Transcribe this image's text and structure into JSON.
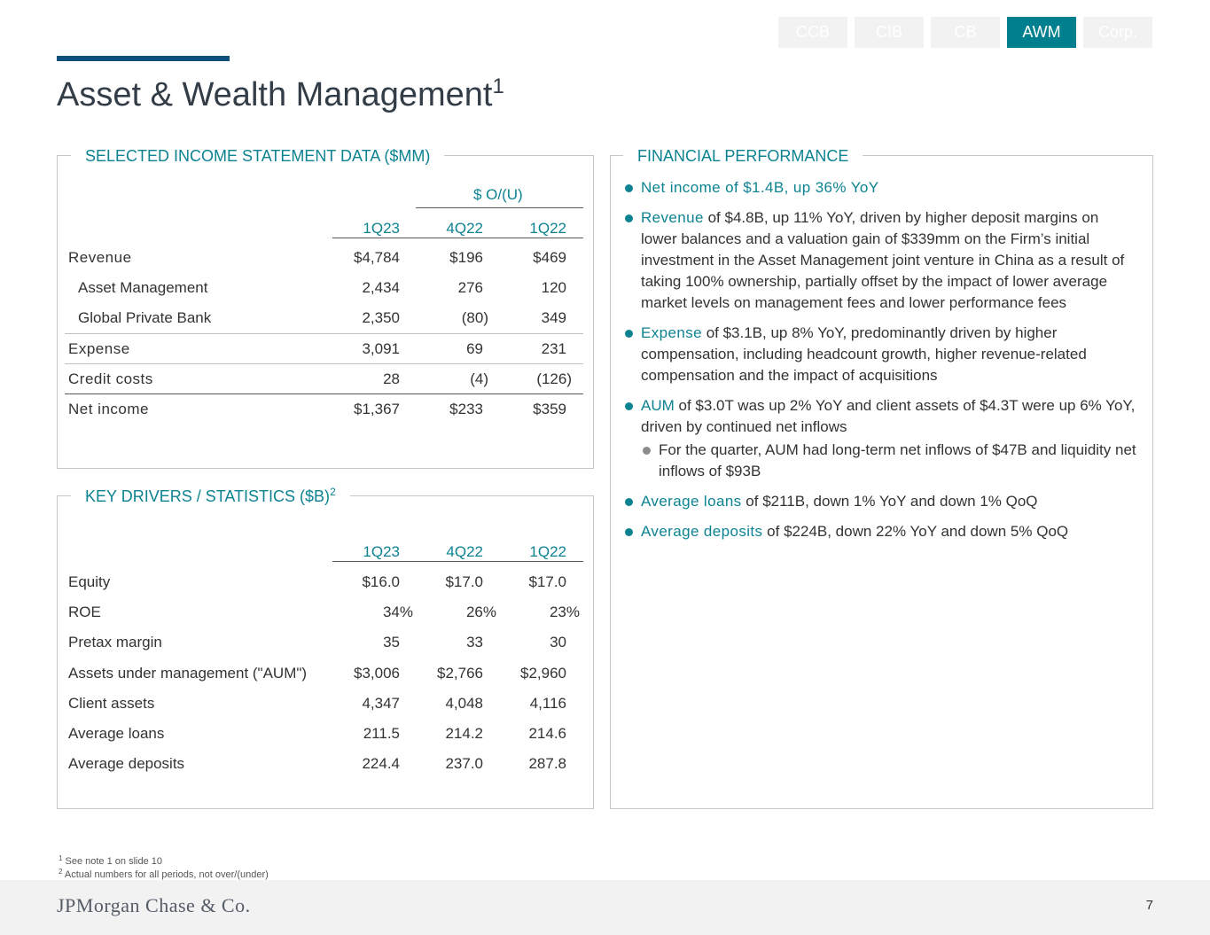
{
  "nav": {
    "tabs": [
      {
        "label": "CCB",
        "active": false
      },
      {
        "label": "CIB",
        "active": false
      },
      {
        "label": "CB",
        "active": false
      },
      {
        "label": "AWM",
        "active": true
      },
      {
        "label": "Corp.",
        "active": false
      }
    ]
  },
  "title": {
    "text": "Asset & Wealth Management",
    "sup": "1"
  },
  "income": {
    "panel_title": "SELECTED INCOME STATEMENT DATA ($MM)",
    "group_header": "$ O/(U)",
    "columns": [
      "1Q23",
      "4Q22",
      "1Q22"
    ],
    "rows": [
      {
        "label": "Revenue",
        "values": [
          "$4,784",
          "$196",
          "$469"
        ]
      },
      {
        "label": "Asset Management",
        "values": [
          "2,434",
          "276",
          "120"
        ]
      },
      {
        "label": "Global Private Bank",
        "values": [
          "2,350",
          "(80)",
          "349"
        ]
      },
      {
        "label": "Expense",
        "values": [
          "3,091",
          "69",
          "231"
        ]
      },
      {
        "label": "Credit costs",
        "values": [
          "28",
          "(4)",
          "(126)"
        ]
      },
      {
        "label": "Net income",
        "values": [
          "$1,367",
          "$233",
          "$359"
        ]
      }
    ]
  },
  "drivers": {
    "panel_title": "KEY DRIVERS / STATISTICS ($B)",
    "panel_title_sup": "2",
    "columns": [
      "1Q23",
      "4Q22",
      "1Q22"
    ],
    "rows": [
      {
        "label": "Equity",
        "values": [
          "$16.0",
          "$17.0",
          "$17.0"
        ]
      },
      {
        "label": "ROE",
        "values": [
          "34%",
          "26%",
          "23%"
        ]
      },
      {
        "label": "Pretax margin",
        "values": [
          "35",
          "33",
          "30"
        ]
      },
      {
        "label": "Assets under management (\"AUM\")",
        "values": [
          "$3,006",
          "$2,766",
          "$2,960"
        ]
      },
      {
        "label": "Client assets",
        "values": [
          "4,347",
          "4,048",
          "4,116"
        ]
      },
      {
        "label": "Average loans",
        "values": [
          "211.5",
          "214.2",
          "214.6"
        ]
      },
      {
        "label": "Average deposits",
        "values": [
          "224.4",
          "237.0",
          "287.8"
        ]
      }
    ]
  },
  "performance": {
    "panel_title": "FINANCIAL PERFORMANCE",
    "bullets": [
      {
        "highlight": "Net income of $1.4B, up 36% YoY",
        "text": ""
      },
      {
        "highlight": "Revenue",
        "text": " of $4.8B, up 11% YoY, driven by higher deposit margins on lower balances and a valuation gain of $339mm on the Firm’s initial investment in the Asset Management joint venture in China as a result of taking 100% ownership, partially offset by the impact of lower average market levels on management fees and lower performance fees"
      },
      {
        "highlight": "Expense",
        "text": " of $3.1B, up 8% YoY, predominantly driven by higher compensation, including headcount growth, higher revenue-related compensation and the impact of acquisitions"
      },
      {
        "highlight": "AUM",
        "text": " of $3.0T was up 2% YoY and client assets of $4.3T were up 6% YoY, driven by continued net inflows",
        "sub": "For the quarter, AUM had long-term net inflows of $47B and liquidity net inflows of $93B"
      },
      {
        "highlight": "Average loans",
        "text": " of $211B, down 1% YoY and down 1% QoQ"
      },
      {
        "highlight": "Average deposits",
        "text": " of $224B, down 22% YoY and down 5% QoQ"
      }
    ]
  },
  "footnotes": [
    {
      "sup": "1",
      "text": "See note 1 on slide 10"
    },
    {
      "sup": "2",
      "text": "Actual numbers for all periods, not over/(under)"
    }
  ],
  "footer": {
    "logo": "JPMorgan Chase & Co.",
    "page_number": "7"
  }
}
